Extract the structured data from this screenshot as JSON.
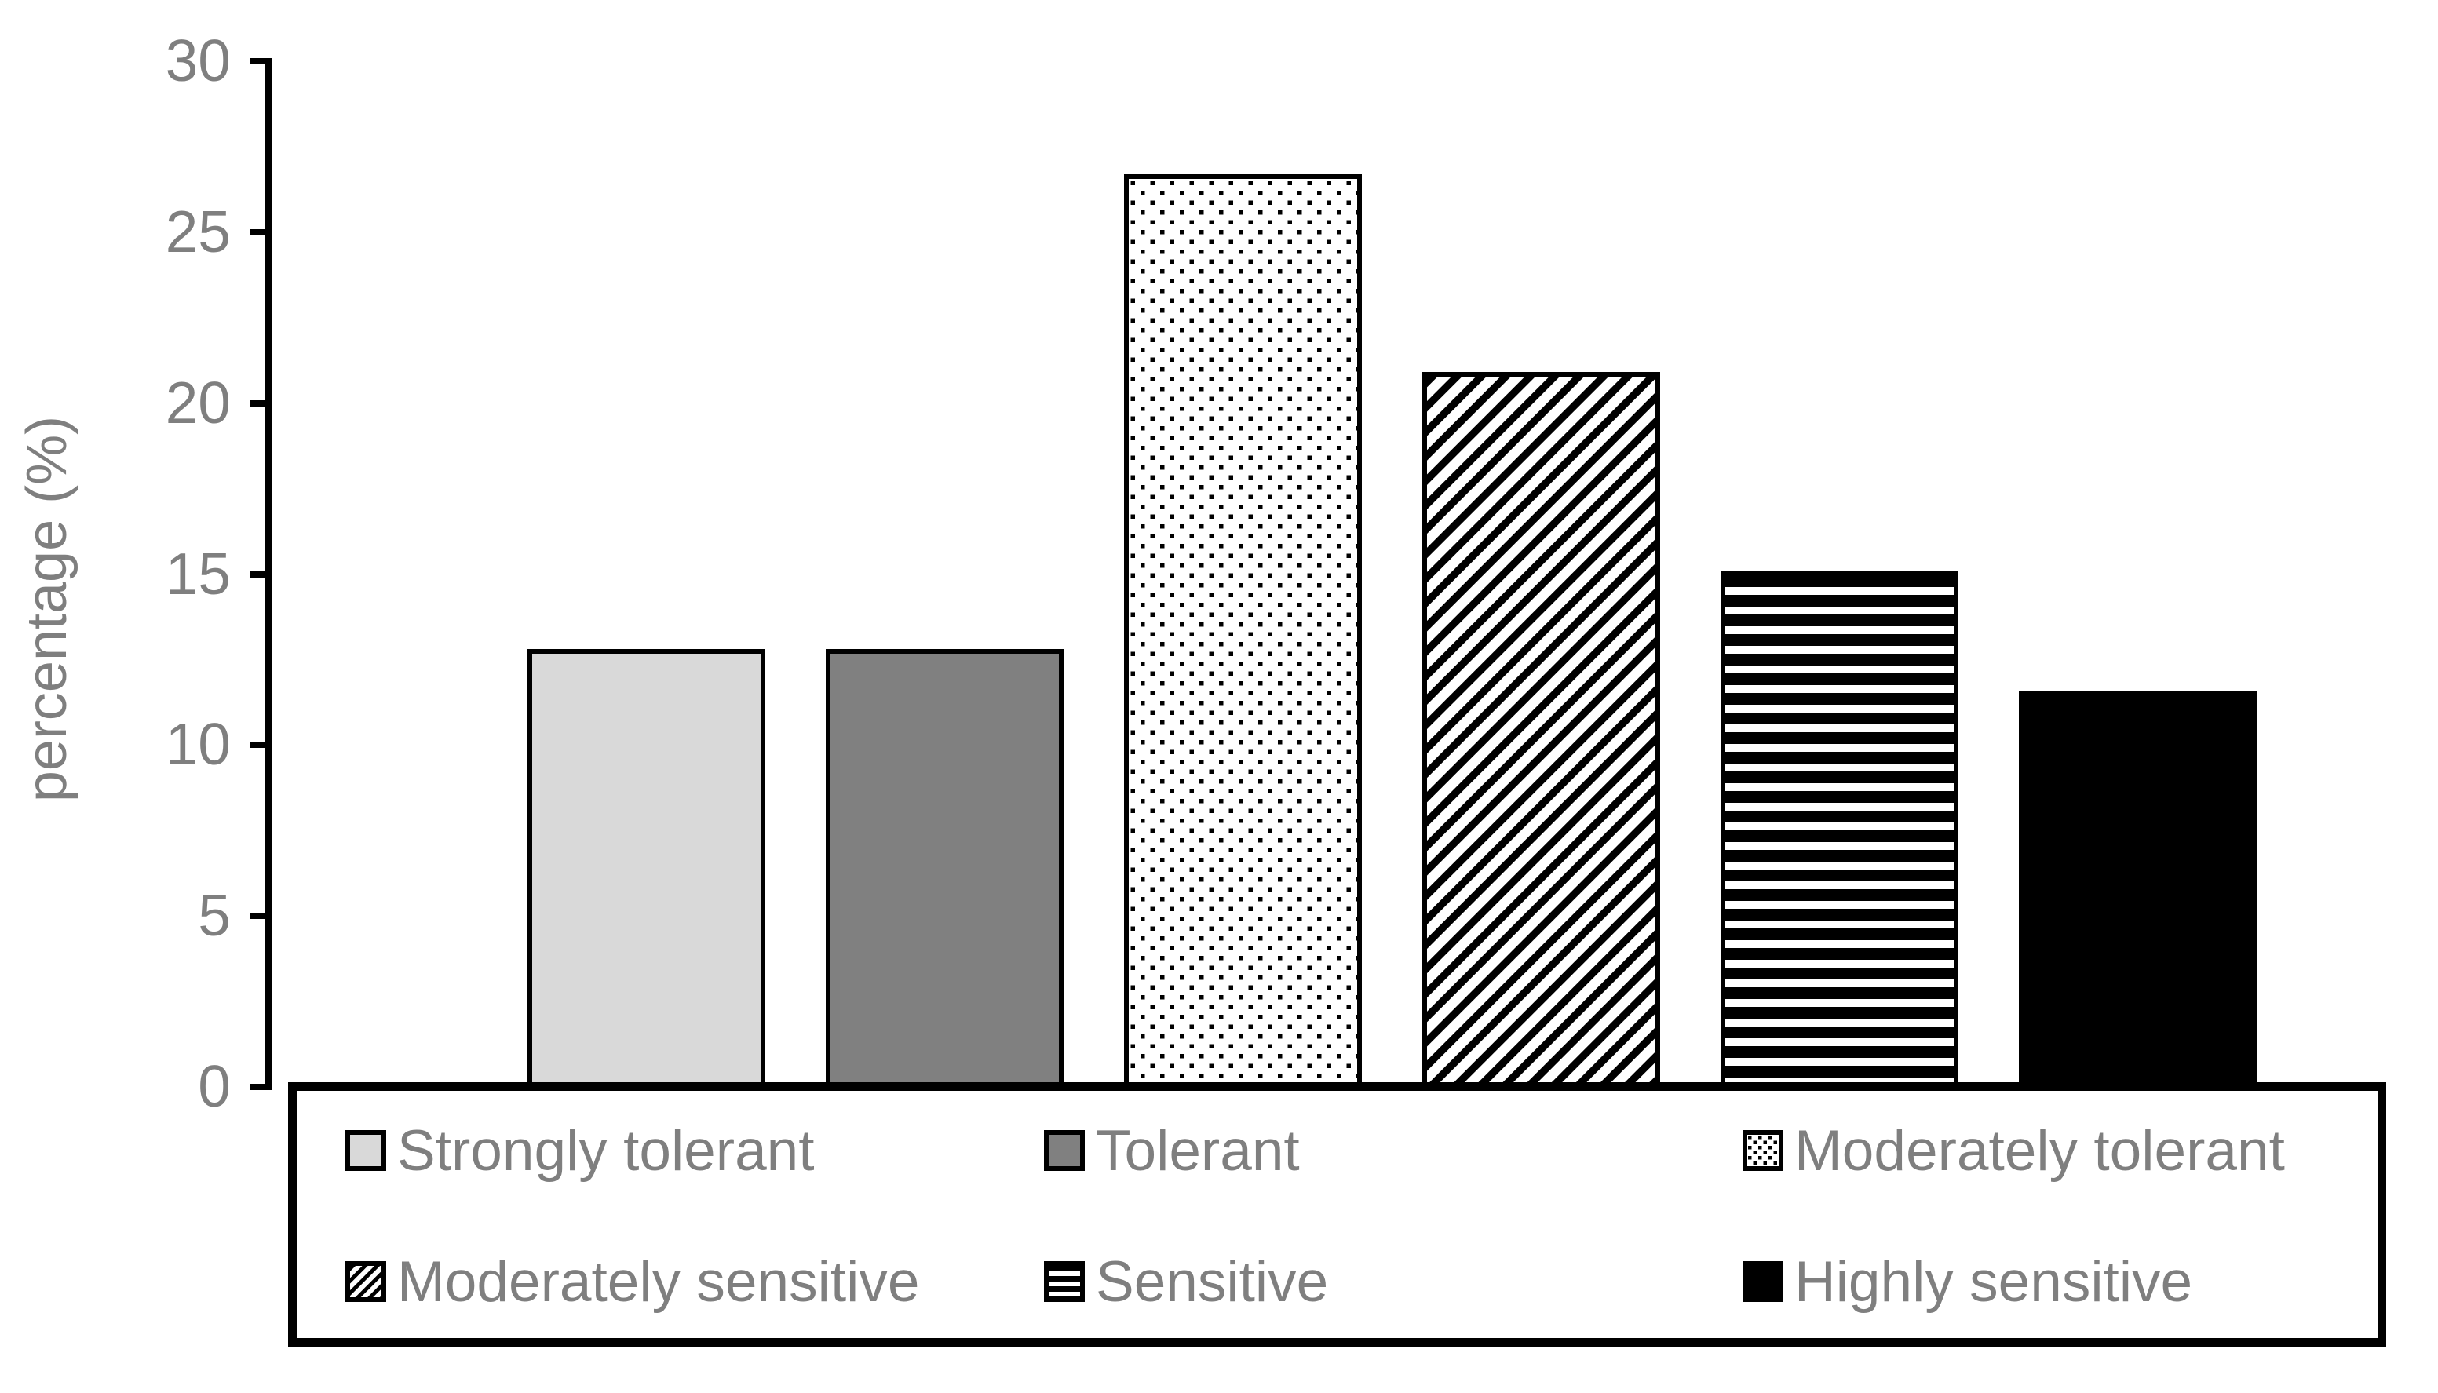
{
  "chart_data": {
    "type": "bar",
    "title": "",
    "xlabel": "",
    "ylabel": "percentage (%)",
    "ylim": [
      0,
      30
    ],
    "yticks": [
      0,
      5,
      10,
      15,
      20,
      25,
      30
    ],
    "grid": false,
    "legend_position": "bottom-box-two-rows",
    "categories": [
      "Strongly tolerant",
      "Tolerant",
      "Moderately tolerant",
      "Moderately sensitive",
      "Sensitive",
      "Highly sensitive"
    ],
    "values": [
      12.8,
      12.8,
      26.7,
      20.9,
      15.1,
      11.6
    ],
    "bar_styles": [
      {
        "label": "Strongly tolerant",
        "pattern": "solid",
        "fill": "#D9D9D9"
      },
      {
        "label": "Tolerant",
        "pattern": "solid",
        "fill": "#808080"
      },
      {
        "label": "Moderately tolerant",
        "pattern": "dots",
        "fill": "#FFFFFF"
      },
      {
        "label": "Moderately sensitive",
        "pattern": "diagonal-stripes",
        "fill": "#FFFFFF"
      },
      {
        "label": "Sensitive",
        "pattern": "horizontal-stripes",
        "fill": "#FFFFFF"
      },
      {
        "label": "Highly sensitive",
        "pattern": "solid",
        "fill": "#000000"
      }
    ]
  },
  "colors": {
    "background": "#FFFFFF",
    "axis": "#000000",
    "bar_border": "#000000",
    "tick_text": "#7F7F7F",
    "axis_label_text": "#7F7F7F",
    "legend_text": "#7F7F7F"
  }
}
